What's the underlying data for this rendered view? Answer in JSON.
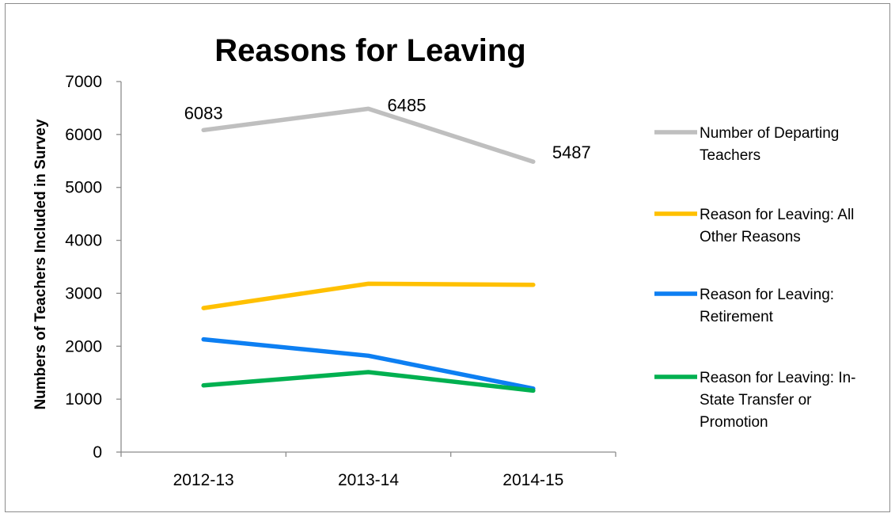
{
  "chart_data": {
    "type": "line",
    "title": "Reasons for Leaving",
    "xlabel": "",
    "ylabel": "Numbers of Teachers Included in Survey",
    "categories": [
      "2012-13",
      "2013-14",
      "2014-15"
    ],
    "ylim": [
      0,
      7000
    ],
    "yticks": [
      "0",
      "1000",
      "2000",
      "3000",
      "4000",
      "5000",
      "6000",
      "7000"
    ],
    "grid": false,
    "legend_position": "right",
    "series": [
      {
        "name": "Number of Departing Teachers",
        "legend_lines": [
          "Number of Departing",
          "Teachers"
        ],
        "color": "#bfbfbf",
        "values": [
          6083,
          6485,
          5487
        ],
        "labels": [
          "6083",
          "6485",
          "5487"
        ]
      },
      {
        "name": "Reason for Leaving: All Other Reasons",
        "legend_lines": [
          "Reason for Leaving: All",
          "Other Reasons"
        ],
        "color": "#ffc000",
        "values": [
          2720,
          3180,
          3160
        ]
      },
      {
        "name": "Reason for Leaving: Retirement",
        "legend_lines": [
          "Reason for Leaving:",
          "Retirement"
        ],
        "color": "#0d7ff2",
        "values": [
          2130,
          1820,
          1200
        ]
      },
      {
        "name": "Reason for Leaving: In-State Transfer or Promotion",
        "legend_lines": [
          "Reason for Leaving: In-",
          "State Transfer or",
          "Promotion"
        ],
        "color": "#00b050",
        "values": [
          1260,
          1510,
          1160
        ]
      }
    ]
  }
}
